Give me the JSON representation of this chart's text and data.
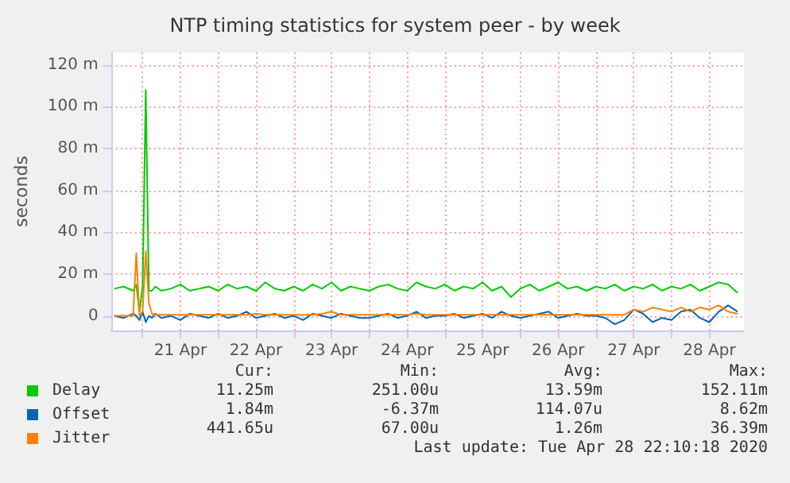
{
  "chart_data": {
    "type": "line",
    "title": "NTP timing statistics for system peer - by week",
    "ylabel": "seconds",
    "x": [
      "--04-20T15:00",
      "--04-20T18:00",
      "--04-20T21:00",
      "--04-20T22:00",
      "--04-20T23:00",
      "--04-21T00:00",
      "--04-21T01:00",
      "--04-21T02:00",
      "--04-21T03:00",
      "--04-21T04:00",
      "--04-21T06:00",
      "--04-21T09:00",
      "--04-21T12:00",
      "--04-21T15:00",
      "--04-21T18:00",
      "--04-21T21:00",
      "--04-22T00:00",
      "--04-22T03:00",
      "--04-22T06:00",
      "--04-22T09:00",
      "--04-22T12:00",
      "--04-22T15:00",
      "--04-22T18:00",
      "--04-22T21:00",
      "--04-23T00:00",
      "--04-23T03:00",
      "--04-23T06:00",
      "--04-23T09:00",
      "--04-23T12:00",
      "--04-23T15:00",
      "--04-23T18:00",
      "--04-23T21:00",
      "--04-24T00:00",
      "--04-24T03:00",
      "--04-24T06:00",
      "--04-24T09:00",
      "--04-24T12:00",
      "--04-24T15:00",
      "--04-24T18:00",
      "--04-24T21:00",
      "--04-25T00:00",
      "--04-25T03:00",
      "--04-25T06:00",
      "--04-25T09:00",
      "--04-25T12:00",
      "--04-25T15:00",
      "--04-25T18:00",
      "--04-25T21:00",
      "--04-26T00:00",
      "--04-26T03:00",
      "--04-26T06:00",
      "--04-26T09:00",
      "--04-26T12:00",
      "--04-26T15:00",
      "--04-26T18:00",
      "--04-26T21:00",
      "--04-27T00:00",
      "--04-27T03:00",
      "--04-27T06:00",
      "--04-27T09:00",
      "--04-27T12:00",
      "--04-27T15:00",
      "--04-27T18:00",
      "--04-27T21:00",
      "--04-28T00:00",
      "--04-28T03:00",
      "--04-28T06:00",
      "--04-28T09:00",
      "--04-28T12:00",
      "--04-28T15:00",
      "--04-28T18:00",
      "--04-28T21:00"
    ],
    "series": [
      {
        "name": "Delay",
        "color": "#00cc00",
        "values": [
          13,
          14,
          12,
          15,
          2,
          14,
          108,
          12,
          12,
          14,
          12,
          13,
          15,
          12,
          13,
          14,
          12,
          15,
          13,
          14,
          12,
          16,
          13,
          12,
          14,
          12,
          15,
          13,
          16,
          12,
          14,
          13,
          12,
          14,
          15,
          13,
          12,
          16,
          14,
          13,
          15,
          12,
          14,
          13,
          16,
          12,
          14,
          9,
          13,
          15,
          12,
          14,
          16,
          13,
          14,
          12,
          14,
          13,
          15,
          12,
          14,
          13,
          15,
          12,
          14,
          13,
          15,
          12,
          14,
          16,
          15,
          11
        ]
      },
      {
        "name": "Offset",
        "color": "#0066b3",
        "values": [
          0,
          -1,
          1,
          0,
          -2,
          2,
          -3,
          0,
          -1,
          1,
          -1,
          0,
          -2,
          1,
          0,
          -1,
          1,
          -1,
          0,
          2,
          -1,
          0,
          1,
          -1,
          0,
          -2,
          1,
          0,
          -1,
          1,
          0,
          -1,
          -1,
          0,
          1,
          -1,
          0,
          2,
          -1,
          0,
          0,
          1,
          -1,
          0,
          1,
          -1,
          2,
          0,
          -1,
          0,
          1,
          2,
          -1,
          0,
          1,
          0,
          0,
          -1,
          -4,
          -2,
          3,
          1,
          -3,
          -1,
          -2,
          2,
          3,
          -1,
          -3,
          2,
          5,
          2
        ]
      },
      {
        "name": "Jitter",
        "color": "#ff8000",
        "values": [
          0,
          0,
          0,
          30,
          0,
          2,
          31,
          6,
          1,
          0.5,
          0.5,
          0.5,
          0.5,
          0.5,
          0.5,
          0.5,
          0.5,
          0.5,
          0.5,
          0.5,
          1,
          0.5,
          0.5,
          0.5,
          0.5,
          0.5,
          0.5,
          1,
          2,
          0.5,
          0.5,
          0.5,
          0.5,
          0.5,
          0.5,
          0.5,
          0.5,
          1,
          0.5,
          0.5,
          0.5,
          0.5,
          0.5,
          0.5,
          0.5,
          0.5,
          0.5,
          0.5,
          0.5,
          0.5,
          0.5,
          0.5,
          0.5,
          0.5,
          0.5,
          0.5,
          0.5,
          0.5,
          0.5,
          0.5,
          3,
          2,
          4,
          3,
          2,
          4,
          2,
          4,
          3,
          5,
          2,
          1
        ]
      }
    ],
    "xlim": [
      "--04-20T14:00",
      "--04-28T23:00"
    ],
    "xticks": [
      {
        "value": "--04-21T00:00",
        "label": null
      },
      {
        "value": "--04-21T12:00",
        "label": "21 Apr"
      },
      {
        "value": "--04-22T00:00",
        "label": null
      },
      {
        "value": "--04-22T12:00",
        "label": "22 Apr"
      },
      {
        "value": "--04-23T00:00",
        "label": null
      },
      {
        "value": "--04-23T12:00",
        "label": "23 Apr"
      },
      {
        "value": "--04-24T00:00",
        "label": null
      },
      {
        "value": "--04-24T12:00",
        "label": "24 Apr"
      },
      {
        "value": "--04-25T00:00",
        "label": null
      },
      {
        "value": "--04-25T12:00",
        "label": "25 Apr"
      },
      {
        "value": "--04-26T00:00",
        "label": null
      },
      {
        "value": "--04-26T12:00",
        "label": "26 Apr"
      },
      {
        "value": "--04-27T00:00",
        "label": null
      },
      {
        "value": "--04-27T12:00",
        "label": "27 Apr"
      },
      {
        "value": "--04-28T00:00",
        "label": null
      },
      {
        "value": "--04-28T12:00",
        "label": "28 Apr"
      }
    ],
    "ylim": [
      -7,
      126
    ],
    "yticks": [
      0,
      {
        "value": 20,
        "label": "20 m"
      },
      {
        "value": 40,
        "label": "40 m"
      },
      {
        "value": 60,
        "label": "60 m"
      },
      {
        "value": 80,
        "label": "80 m"
      },
      {
        "value": 100,
        "label": "100 m"
      },
      {
        "value": 120,
        "label": "120 m"
      }
    ],
    "grid": true,
    "legend": "bottom left",
    "marker": "none",
    "line_style": "solid",
    "annotations": [
      "Cur:",
      "Min:",
      "Avg:",
      "Max:",
      "11.25m",
      "251.00u",
      "13.59m",
      "152.11m",
      "1.84m",
      "-6.37m",
      "114.07u",
      "8.62m",
      "441.65u",
      "67.00u",
      "1.26m",
      "36.39m",
      "Last update: Tue Apr 28 22:10:18 2020"
    ]
  }
}
